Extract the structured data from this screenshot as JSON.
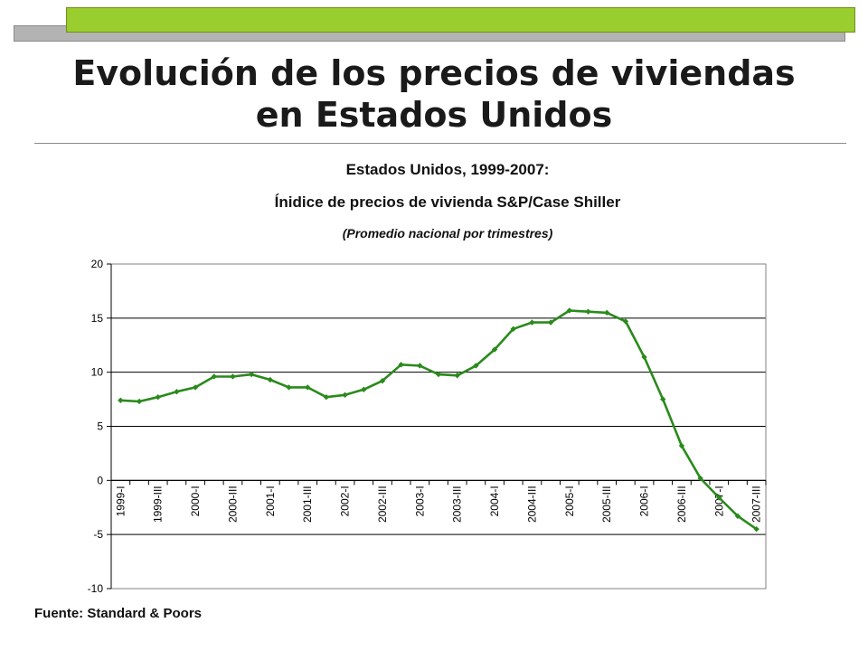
{
  "slide": {
    "title_line1": "Evolución de los precios de viviendas",
    "title_line2": "en Estados Unidos",
    "source": "Fuente: Standard & Poors"
  },
  "colors": {
    "accent_green": "#9acd2e",
    "line": "#2a8a1c",
    "bar_gray": "#b3b3b3"
  },
  "chart_data": {
    "type": "line",
    "title": "Estados Unidos, 1999-2007:",
    "subtitle": "Ínidice de precios de vivienda S&P/Case Shiller",
    "note": "(Promedio nacional por trimestres)",
    "xlabel": "",
    "ylabel": "",
    "ylim": [
      -10,
      20
    ],
    "yticks": [
      -10,
      -5,
      0,
      5,
      10,
      15,
      20
    ],
    "grid": true,
    "legend": "none",
    "x_tick_labels": [
      "1999-I",
      "1999-III",
      "2000-I",
      "2000-III",
      "2001-I",
      "2001-III",
      "2002-I",
      "2002-III",
      "2003-I",
      "2003-III",
      "2004-I",
      "2004-III",
      "2005-I",
      "2005-III",
      "2006-I",
      "2006-III",
      "2007-I",
      "2007-III"
    ],
    "series": [
      {
        "values": [
          7.4,
          7.3,
          7.7,
          8.2,
          8.6,
          9.6,
          9.6,
          9.8,
          9.3,
          8.6,
          8.6,
          7.7,
          7.9,
          8.4,
          9.2,
          10.7,
          10.6,
          9.8,
          9.7,
          10.6,
          12.1,
          14.0,
          14.6,
          14.6,
          15.7,
          15.6,
          15.5,
          14.7,
          11.4,
          7.5,
          3.2,
          0.2,
          -1.6,
          -3.3,
          -4.5
        ]
      }
    ]
  }
}
